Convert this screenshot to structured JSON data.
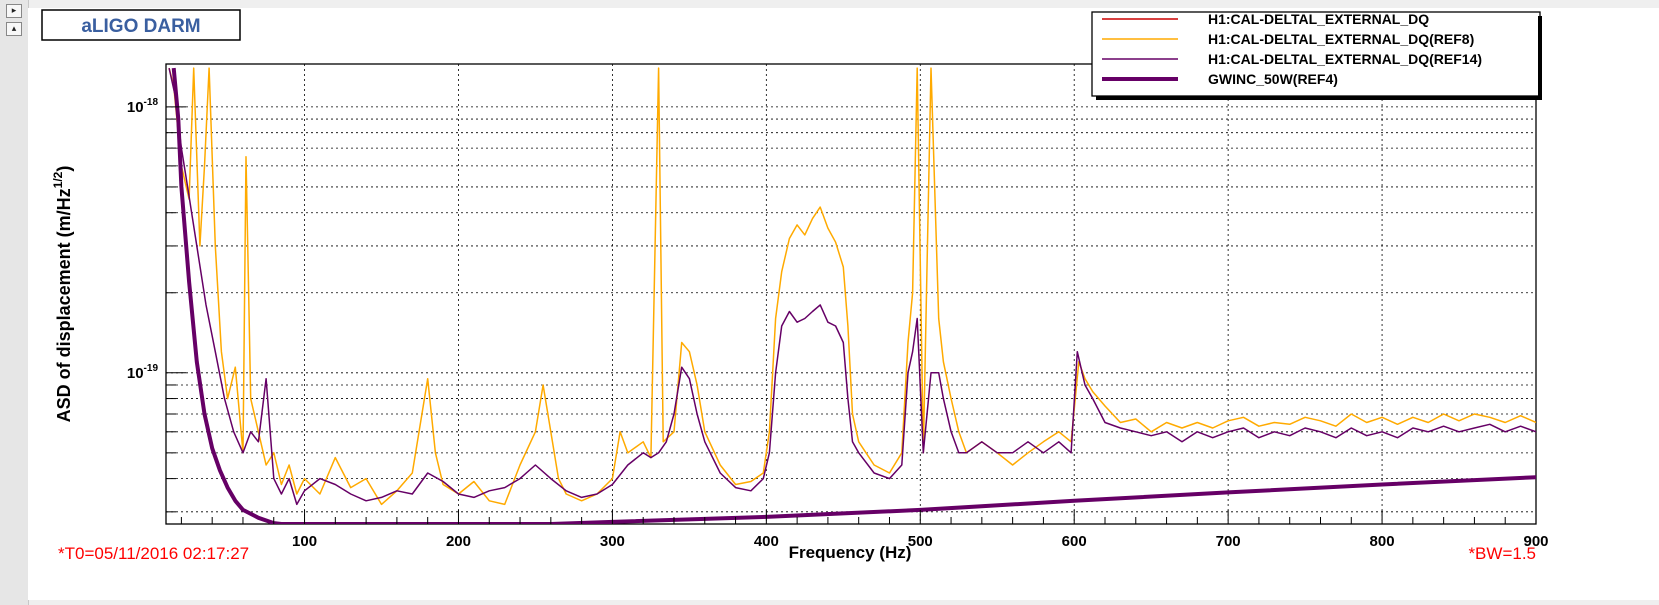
{
  "title_box": {
    "text": "aLIGO DARM"
  },
  "chart_data": {
    "type": "line",
    "title": "aLIGO DARM",
    "xlabel": "Frequency (Hz)",
    "ylabel": "ASD of displacement (m/Hz",
    "ylabel_sup": "1/2",
    "ylabel_close": ")",
    "xlim": [
      10,
      900
    ],
    "ylim": [
      2.7e-20,
      1.45e-18
    ],
    "yscale": "log",
    "grid": true,
    "legend_position": "top-right",
    "x_ticks": [
      100,
      200,
      300,
      400,
      500,
      600,
      700,
      800,
      900
    ],
    "x_tick_labels": [
      "100",
      "200",
      "300",
      "400",
      "500",
      "600",
      "700",
      "800",
      "900"
    ],
    "y_major_ticks": [
      1e-19,
      1e-18
    ],
    "y_tick_labels": [
      {
        "base": "10",
        "exp": "-19"
      },
      {
        "base": "10",
        "exp": "-18"
      }
    ],
    "annotations": {
      "t0": "*T0=05/11/2016 02:17:27",
      "bw": "*BW=1.5"
    },
    "series": [
      {
        "name": "H1:CAL-DELTAL_EXTERNAL_DQ",
        "color": "#cc0000",
        "width": 1,
        "points": []
      },
      {
        "name": "H1:CAL-DELTAL_EXTERNAL_DQ(REF8)",
        "color": "#ffaa00",
        "width": 1.5,
        "points": [
          [
            12,
            1.4e-18
          ],
          [
            15,
            1.2e-18
          ],
          [
            20,
            6e-19
          ],
          [
            25,
            4.5e-19
          ],
          [
            28,
            1.4e-18
          ],
          [
            32,
            3e-19
          ],
          [
            35,
            6e-19
          ],
          [
            38,
            1.4e-18
          ],
          [
            42,
            3e-19
          ],
          [
            46,
            1.2e-19
          ],
          [
            50,
            8e-20
          ],
          [
            55,
            1.05e-19
          ],
          [
            60,
            5e-20
          ],
          [
            62,
            6.5e-19
          ],
          [
            65,
            8e-20
          ],
          [
            70,
            6e-20
          ],
          [
            75,
            4.5e-20
          ],
          [
            80,
            5e-20
          ],
          [
            85,
            3.8e-20
          ],
          [
            90,
            4.5e-20
          ],
          [
            95,
            3.5e-20
          ],
          [
            100,
            4e-20
          ],
          [
            110,
            3.5e-20
          ],
          [
            120,
            4.8e-20
          ],
          [
            130,
            3.7e-20
          ],
          [
            140,
            4e-20
          ],
          [
            150,
            3.2e-20
          ],
          [
            160,
            3.6e-20
          ],
          [
            170,
            4.2e-20
          ],
          [
            180,
            9.5e-20
          ],
          [
            185,
            5e-20
          ],
          [
            190,
            3.8e-20
          ],
          [
            200,
            3.5e-20
          ],
          [
            210,
            3.9e-20
          ],
          [
            220,
            3.3e-20
          ],
          [
            230,
            3.2e-20
          ],
          [
            240,
            4.5e-20
          ],
          [
            250,
            6e-20
          ],
          [
            255,
            9e-20
          ],
          [
            260,
            6e-20
          ],
          [
            265,
            4e-20
          ],
          [
            270,
            3.5e-20
          ],
          [
            280,
            3.3e-20
          ],
          [
            290,
            3.5e-20
          ],
          [
            300,
            4e-20
          ],
          [
            305,
            6e-20
          ],
          [
            310,
            5e-20
          ],
          [
            320,
            5.5e-20
          ],
          [
            325,
            4.8e-20
          ],
          [
            330,
            1.4e-18
          ],
          [
            333,
            5.5e-20
          ],
          [
            340,
            6e-20
          ],
          [
            345,
            1.3e-19
          ],
          [
            350,
            1.2e-19
          ],
          [
            355,
            9e-20
          ],
          [
            360,
            6e-20
          ],
          [
            370,
            4.5e-20
          ],
          [
            380,
            3.8e-20
          ],
          [
            390,
            3.9e-20
          ],
          [
            398,
            4.2e-20
          ],
          [
            402,
            6e-20
          ],
          [
            406,
            1.6e-19
          ],
          [
            410,
            2.4e-19
          ],
          [
            415,
            3.2e-19
          ],
          [
            420,
            3.6e-19
          ],
          [
            425,
            3.3e-19
          ],
          [
            430,
            3.8e-19
          ],
          [
            435,
            4.2e-19
          ],
          [
            440,
            3.5e-19
          ],
          [
            445,
            3.1e-19
          ],
          [
            450,
            2.5e-19
          ],
          [
            453,
            1.5e-19
          ],
          [
            456,
            7e-20
          ],
          [
            460,
            5.5e-20
          ],
          [
            470,
            4.5e-20
          ],
          [
            480,
            4.2e-20
          ],
          [
            488,
            5e-20
          ],
          [
            492,
            1.3e-19
          ],
          [
            495,
            2e-19
          ],
          [
            498,
            1.4e-18
          ],
          [
            502,
            5e-20
          ],
          [
            507,
            1.4e-18
          ],
          [
            512,
            1.6e-19
          ],
          [
            515,
            1.1e-19
          ],
          [
            520,
            8e-20
          ],
          [
            525,
            6e-20
          ],
          [
            530,
            5e-20
          ],
          [
            540,
            5.5e-20
          ],
          [
            550,
            5e-20
          ],
          [
            560,
            4.5e-20
          ],
          [
            570,
            5e-20
          ],
          [
            580,
            5.5e-20
          ],
          [
            590,
            6e-20
          ],
          [
            598,
            5.5e-20
          ],
          [
            603,
            1.1e-19
          ],
          [
            607,
            9.5e-20
          ],
          [
            612,
            8.5e-20
          ],
          [
            620,
            7.5e-20
          ],
          [
            630,
            6.5e-20
          ],
          [
            640,
            6.7e-20
          ],
          [
            650,
            6e-20
          ],
          [
            660,
            6.5e-20
          ],
          [
            670,
            6.2e-20
          ],
          [
            680,
            6.5e-20
          ],
          [
            690,
            6.2e-20
          ],
          [
            700,
            6.6e-20
          ],
          [
            710,
            6.8e-20
          ],
          [
            720,
            6.3e-20
          ],
          [
            730,
            6.5e-20
          ],
          [
            740,
            6.4e-20
          ],
          [
            750,
            6.8e-20
          ],
          [
            760,
            6.6e-20
          ],
          [
            770,
            6.3e-20
          ],
          [
            780,
            7e-20
          ],
          [
            790,
            6.5e-20
          ],
          [
            800,
            6.8e-20
          ],
          [
            810,
            6.4e-20
          ],
          [
            820,
            6.8e-20
          ],
          [
            830,
            6.5e-20
          ],
          [
            840,
            7e-20
          ],
          [
            850,
            6.6e-20
          ],
          [
            860,
            7e-20
          ],
          [
            870,
            6.8e-20
          ],
          [
            880,
            6.5e-20
          ],
          [
            890,
            6.9e-20
          ],
          [
            900,
            6.5e-20
          ]
        ]
      },
      {
        "name": "H1:CAL-DELTAL_EXTERNAL_DQ(REF14)",
        "color": "#660066",
        "width": 1.5,
        "points": [
          [
            12,
            1.4e-18
          ],
          [
            16,
            1.1e-18
          ],
          [
            20,
            7e-19
          ],
          [
            24,
            5e-19
          ],
          [
            30,
            3e-19
          ],
          [
            36,
            1.8e-19
          ],
          [
            42,
            1.2e-19
          ],
          [
            48,
            8e-20
          ],
          [
            54,
            6e-20
          ],
          [
            60,
            5e-20
          ],
          [
            65,
            6e-20
          ],
          [
            70,
            5.5e-20
          ],
          [
            75,
            9.5e-20
          ],
          [
            80,
            4e-20
          ],
          [
            85,
            3.5e-20
          ],
          [
            90,
            4e-20
          ],
          [
            95,
            3.2e-20
          ],
          [
            100,
            3.6e-20
          ],
          [
            110,
            4e-20
          ],
          [
            120,
            3.8e-20
          ],
          [
            130,
            3.5e-20
          ],
          [
            140,
            3.3e-20
          ],
          [
            150,
            3.4e-20
          ],
          [
            160,
            3.6e-20
          ],
          [
            170,
            3.5e-20
          ],
          [
            180,
            4.2e-20
          ],
          [
            190,
            3.9e-20
          ],
          [
            200,
            3.5e-20
          ],
          [
            210,
            3.4e-20
          ],
          [
            220,
            3.6e-20
          ],
          [
            230,
            3.7e-20
          ],
          [
            240,
            4e-20
          ],
          [
            250,
            4.5e-20
          ],
          [
            260,
            4e-20
          ],
          [
            270,
            3.6e-20
          ],
          [
            280,
            3.4e-20
          ],
          [
            290,
            3.5e-20
          ],
          [
            300,
            3.8e-20
          ],
          [
            310,
            4.5e-20
          ],
          [
            320,
            5e-20
          ],
          [
            325,
            4.8e-20
          ],
          [
            330,
            5e-20
          ],
          [
            335,
            5.5e-20
          ],
          [
            340,
            7e-20
          ],
          [
            345,
            1.05e-19
          ],
          [
            350,
            9.5e-20
          ],
          [
            355,
            7e-20
          ],
          [
            360,
            5.5e-20
          ],
          [
            370,
            4.2e-20
          ],
          [
            380,
            3.7e-20
          ],
          [
            390,
            3.6e-20
          ],
          [
            398,
            4e-20
          ],
          [
            402,
            5e-20
          ],
          [
            406,
            1e-19
          ],
          [
            410,
            1.5e-19
          ],
          [
            415,
            1.7e-19
          ],
          [
            420,
            1.55e-19
          ],
          [
            425,
            1.6e-19
          ],
          [
            430,
            1.7e-19
          ],
          [
            435,
            1.8e-19
          ],
          [
            440,
            1.55e-19
          ],
          [
            445,
            1.5e-19
          ],
          [
            450,
            1.3e-19
          ],
          [
            453,
            8e-20
          ],
          [
            456,
            5.5e-20
          ],
          [
            460,
            5e-20
          ],
          [
            470,
            4.2e-20
          ],
          [
            480,
            4e-20
          ],
          [
            488,
            4.5e-20
          ],
          [
            492,
            1e-19
          ],
          [
            495,
            1.2e-19
          ],
          [
            498,
            1.6e-19
          ],
          [
            502,
            5e-20
          ],
          [
            507,
            1e-19
          ],
          [
            512,
            1e-19
          ],
          [
            515,
            8e-20
          ],
          [
            520,
            6e-20
          ],
          [
            525,
            5e-20
          ],
          [
            530,
            5e-20
          ],
          [
            540,
            5.5e-20
          ],
          [
            550,
            5e-20
          ],
          [
            560,
            5e-20
          ],
          [
            570,
            5.5e-20
          ],
          [
            580,
            5e-20
          ],
          [
            590,
            5.5e-20
          ],
          [
            598,
            5e-20
          ],
          [
            602,
            1.2e-19
          ],
          [
            607,
            9e-20
          ],
          [
            612,
            8e-20
          ],
          [
            620,
            6.5e-20
          ],
          [
            630,
            6.2e-20
          ],
          [
            640,
            6e-20
          ],
          [
            650,
            5.8e-20
          ],
          [
            660,
            6e-20
          ],
          [
            670,
            5.5e-20
          ],
          [
            680,
            6e-20
          ],
          [
            690,
            5.7e-20
          ],
          [
            700,
            6e-20
          ],
          [
            710,
            6.2e-20
          ],
          [
            720,
            5.7e-20
          ],
          [
            730,
            6e-20
          ],
          [
            740,
            5.8e-20
          ],
          [
            750,
            6.2e-20
          ],
          [
            760,
            6e-20
          ],
          [
            770,
            5.7e-20
          ],
          [
            780,
            6.2e-20
          ],
          [
            790,
            5.8e-20
          ],
          [
            800,
            6e-20
          ],
          [
            810,
            5.7e-20
          ],
          [
            820,
            6.2e-20
          ],
          [
            830,
            6e-20
          ],
          [
            840,
            6.3e-20
          ],
          [
            850,
            6e-20
          ],
          [
            860,
            6.2e-20
          ],
          [
            870,
            6.4e-20
          ],
          [
            880,
            6e-20
          ],
          [
            890,
            6.3e-20
          ],
          [
            900,
            6e-20
          ]
        ]
      },
      {
        "name": "GWINC_50W(REF4)",
        "color": "#660066",
        "width": 4,
        "points": [
          [
            15,
            1.4e-18
          ],
          [
            18,
            9e-19
          ],
          [
            20,
            5e-19
          ],
          [
            25,
            2.2e-19
          ],
          [
            30,
            1.1e-19
          ],
          [
            35,
            7e-20
          ],
          [
            40,
            5.2e-20
          ],
          [
            45,
            4.3e-20
          ],
          [
            50,
            3.7e-20
          ],
          [
            55,
            3.3e-20
          ],
          [
            60,
            3.05e-20
          ],
          [
            70,
            2.85e-20
          ],
          [
            80,
            2.72e-20
          ],
          [
            85,
            2.7e-20
          ],
          [
            260,
            2.7e-20
          ],
          [
            300,
            2.75e-20
          ],
          [
            400,
            2.87e-20
          ],
          [
            500,
            3.05e-20
          ],
          [
            600,
            3.3e-20
          ],
          [
            700,
            3.55e-20
          ],
          [
            800,
            3.8e-20
          ],
          [
            900,
            4.05e-20
          ]
        ]
      }
    ]
  }
}
